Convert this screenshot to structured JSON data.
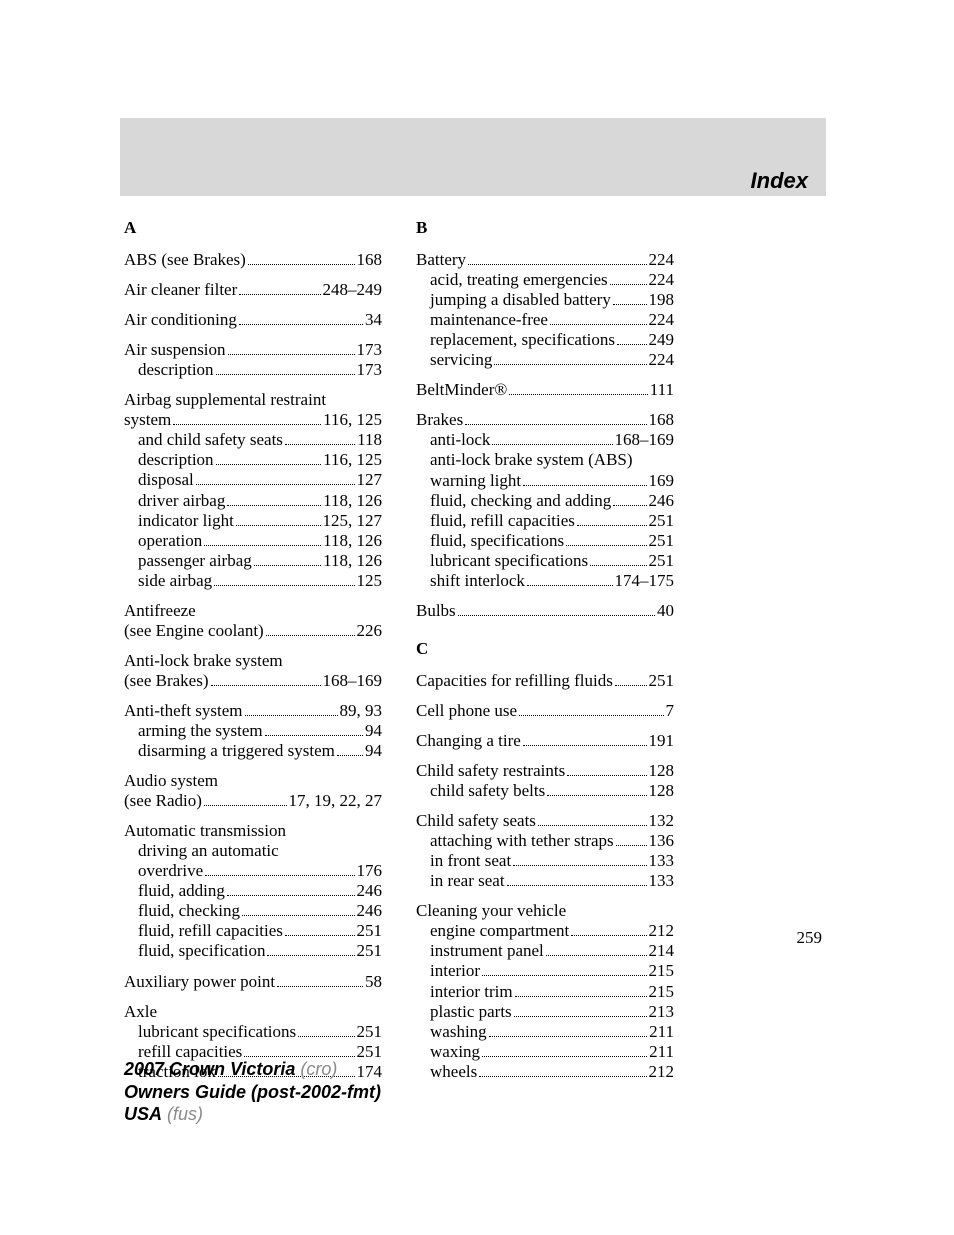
{
  "header": {
    "title": "Index"
  },
  "page_number": "259",
  "footer": {
    "line1_bold": "2007 Crown Victoria",
    "line1_light": "(cro)",
    "line2_bold": "Owners Guide (post-2002-fmt)",
    "line3_bold": "USA",
    "line3_light": "(fus)"
  },
  "colors": {
    "header_bg": "#d8d8d8",
    "text": "#000000",
    "footer_light": "#8a8a8a",
    "page_bg": "#ffffff"
  },
  "index": {
    "columns": [
      {
        "sections": [
          {
            "letter": "A",
            "entries": [
              {
                "lines": [
                  {
                    "label": "ABS (see Brakes)",
                    "pages": "168"
                  }
                ]
              },
              {
                "lines": [
                  {
                    "label": "Air cleaner filter",
                    "pages": "248–249"
                  }
                ]
              },
              {
                "lines": [
                  {
                    "label": "Air conditioning",
                    "pages": "34"
                  }
                ]
              },
              {
                "lines": [
                  {
                    "label": "Air suspension",
                    "pages": "173"
                  },
                  {
                    "label": "description",
                    "pages": "173",
                    "sub": true
                  }
                ]
              },
              {
                "lines": [
                  {
                    "label": "Airbag supplemental restraint",
                    "nodots": true
                  },
                  {
                    "label": "system",
                    "pages": "116, 125"
                  },
                  {
                    "label": "and child safety seats",
                    "pages": "118",
                    "sub": true
                  },
                  {
                    "label": "description",
                    "pages": "116, 125",
                    "sub": true
                  },
                  {
                    "label": "disposal",
                    "pages": "127",
                    "sub": true
                  },
                  {
                    "label": "driver airbag",
                    "pages": "118, 126",
                    "sub": true
                  },
                  {
                    "label": "indicator light",
                    "pages": "125, 127",
                    "sub": true
                  },
                  {
                    "label": "operation",
                    "pages": "118, 126",
                    "sub": true
                  },
                  {
                    "label": "passenger airbag",
                    "pages": "118, 126",
                    "sub": true
                  },
                  {
                    "label": "side airbag",
                    "pages": "125",
                    "sub": true
                  }
                ]
              },
              {
                "lines": [
                  {
                    "label": "Antifreeze",
                    "nodots": true
                  },
                  {
                    "label": "(see Engine coolant)",
                    "pages": "226"
                  }
                ]
              },
              {
                "lines": [
                  {
                    "label": "Anti-lock brake system",
                    "nodots": true
                  },
                  {
                    "label": "(see Brakes)",
                    "pages": "168–169"
                  }
                ]
              },
              {
                "lines": [
                  {
                    "label": "Anti-theft system",
                    "pages": "89, 93"
                  },
                  {
                    "label": "arming the system",
                    "pages": "94",
                    "sub": true
                  },
                  {
                    "label": "disarming a triggered system",
                    "pages": "94",
                    "sub": true,
                    "tight": true
                  }
                ]
              },
              {
                "lines": [
                  {
                    "label": "Audio system",
                    "nodots": true
                  },
                  {
                    "label": "(see Radio)",
                    "pages": "17, 19, 22, 27"
                  }
                ]
              },
              {
                "lines": [
                  {
                    "label": "Automatic transmission",
                    "nodots": true
                  },
                  {
                    "label": "driving an automatic",
                    "nodots": true,
                    "sub": true
                  },
                  {
                    "label": "overdrive",
                    "pages": "176",
                    "sub": true
                  },
                  {
                    "label": "fluid, adding",
                    "pages": "246",
                    "sub": true
                  },
                  {
                    "label": "fluid, checking",
                    "pages": "246",
                    "sub": true
                  },
                  {
                    "label": "fluid, refill capacities",
                    "pages": "251",
                    "sub": true
                  },
                  {
                    "label": "fluid, specification",
                    "pages": "251",
                    "sub": true
                  }
                ]
              },
              {
                "lines": [
                  {
                    "label": "Auxiliary power point",
                    "pages": "58"
                  }
                ]
              },
              {
                "lines": [
                  {
                    "label": "Axle",
                    "nodots": true
                  },
                  {
                    "label": "lubricant specifications",
                    "pages": "251",
                    "sub": true
                  },
                  {
                    "label": "refill capacities",
                    "pages": "251",
                    "sub": true
                  },
                  {
                    "label": "traction lok",
                    "pages": "174",
                    "sub": true
                  }
                ]
              }
            ]
          }
        ]
      },
      {
        "sections": [
          {
            "letter": "B",
            "entries": [
              {
                "lines": [
                  {
                    "label": "Battery",
                    "pages": "224"
                  },
                  {
                    "label": "acid, treating emergencies",
                    "pages": "224",
                    "sub": true
                  },
                  {
                    "label": "jumping a disabled battery",
                    "pages": "198",
                    "sub": true
                  },
                  {
                    "label": "maintenance-free",
                    "pages": "224",
                    "sub": true
                  },
                  {
                    "label": "replacement, specifications",
                    "pages": "249",
                    "sub": true
                  },
                  {
                    "label": "servicing",
                    "pages": "224",
                    "sub": true
                  }
                ]
              },
              {
                "lines": [
                  {
                    "label": "BeltMinder®",
                    "pages": "111"
                  }
                ]
              },
              {
                "lines": [
                  {
                    "label": "Brakes",
                    "pages": "168"
                  },
                  {
                    "label": "anti-lock",
                    "pages": "168–169",
                    "sub": true
                  },
                  {
                    "label": "anti-lock brake system (ABS)",
                    "nodots": true,
                    "sub": true
                  },
                  {
                    "label": "warning light",
                    "pages": "169",
                    "sub": true
                  },
                  {
                    "label": "fluid, checking and adding",
                    "pages": "246",
                    "sub": true
                  },
                  {
                    "label": "fluid, refill capacities",
                    "pages": "251",
                    "sub": true
                  },
                  {
                    "label": "fluid, specifications",
                    "pages": "251",
                    "sub": true
                  },
                  {
                    "label": "lubricant specifications",
                    "pages": "251",
                    "sub": true
                  },
                  {
                    "label": "shift interlock",
                    "pages": "174–175",
                    "sub": true
                  }
                ]
              },
              {
                "lines": [
                  {
                    "label": "Bulbs",
                    "pages": "40"
                  }
                ]
              }
            ]
          },
          {
            "letter": "C",
            "entries": [
              {
                "lines": [
                  {
                    "label": "Capacities for refilling fluids",
                    "pages": "251"
                  }
                ]
              },
              {
                "lines": [
                  {
                    "label": "Cell phone use",
                    "pages": "7"
                  }
                ]
              },
              {
                "lines": [
                  {
                    "label": "Changing a tire",
                    "pages": "191"
                  }
                ]
              },
              {
                "lines": [
                  {
                    "label": "Child safety restraints",
                    "pages": "128"
                  },
                  {
                    "label": "child safety belts",
                    "pages": "128",
                    "sub": true
                  }
                ]
              },
              {
                "lines": [
                  {
                    "label": "Child safety seats",
                    "pages": "132"
                  },
                  {
                    "label": "attaching with tether straps",
                    "pages": "136",
                    "sub": true,
                    "tight": true
                  },
                  {
                    "label": "in front seat",
                    "pages": "133",
                    "sub": true
                  },
                  {
                    "label": "in rear seat",
                    "pages": "133",
                    "sub": true
                  }
                ]
              },
              {
                "lines": [
                  {
                    "label": "Cleaning your vehicle",
                    "nodots": true
                  },
                  {
                    "label": "engine compartment",
                    "pages": "212",
                    "sub": true
                  },
                  {
                    "label": "instrument panel",
                    "pages": "214",
                    "sub": true
                  },
                  {
                    "label": "interior",
                    "pages": "215",
                    "sub": true
                  },
                  {
                    "label": "interior trim",
                    "pages": "215",
                    "sub": true
                  },
                  {
                    "label": "plastic parts",
                    "pages": "213",
                    "sub": true
                  },
                  {
                    "label": "washing",
                    "pages": "211",
                    "sub": true
                  },
                  {
                    "label": "waxing",
                    "pages": "211",
                    "sub": true
                  },
                  {
                    "label": "wheels",
                    "pages": "212",
                    "sub": true
                  }
                ]
              }
            ]
          }
        ]
      }
    ]
  }
}
